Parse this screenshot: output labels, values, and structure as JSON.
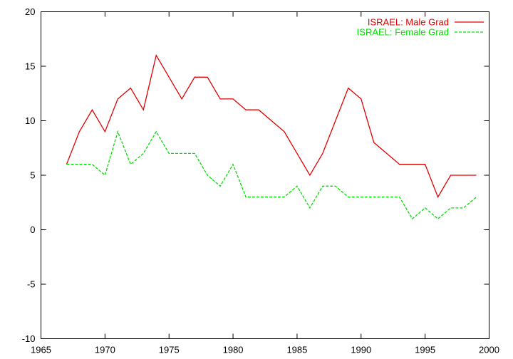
{
  "chart_data": {
    "type": "line",
    "title": "",
    "xlabel": "",
    "ylabel": "",
    "xlim": [
      1965,
      2000
    ],
    "ylim": [
      -10,
      20
    ],
    "xticks": [
      1965,
      1970,
      1975,
      1980,
      1985,
      1990,
      1995,
      2000
    ],
    "yticks": [
      -10,
      -5,
      0,
      5,
      10,
      15,
      20
    ],
    "grid": false,
    "legend_position": "top-right",
    "x": [
      1967,
      1968,
      1969,
      1970,
      1971,
      1972,
      1973,
      1974,
      1975,
      1976,
      1977,
      1978,
      1979,
      1980,
      1981,
      1982,
      1983,
      1984,
      1985,
      1986,
      1987,
      1988,
      1989,
      1990,
      1991,
      1992,
      1993,
      1994,
      1995,
      1996,
      1997,
      1998,
      1999
    ],
    "series": [
      {
        "name": "ISRAEL: Male Grad",
        "color": "#e00000",
        "dash": "solid",
        "values": [
          6,
          9,
          11,
          9,
          12,
          13,
          11,
          16,
          14,
          12,
          14,
          14,
          12,
          12,
          11,
          11,
          10,
          9,
          7,
          5,
          7,
          10,
          13,
          12,
          8,
          7,
          6,
          6,
          6,
          3,
          5,
          5,
          5
        ]
      },
      {
        "name": "ISRAEL: Female Grad",
        "color": "#00e000",
        "dash": "dashed",
        "values": [
          6,
          6,
          6,
          5,
          9,
          6,
          7,
          9,
          7,
          7,
          7,
          5,
          4,
          6,
          3,
          3,
          3,
          3,
          4,
          2,
          4,
          4,
          3,
          3,
          3,
          3,
          3,
          1,
          2,
          1,
          2,
          2,
          3
        ]
      }
    ]
  }
}
